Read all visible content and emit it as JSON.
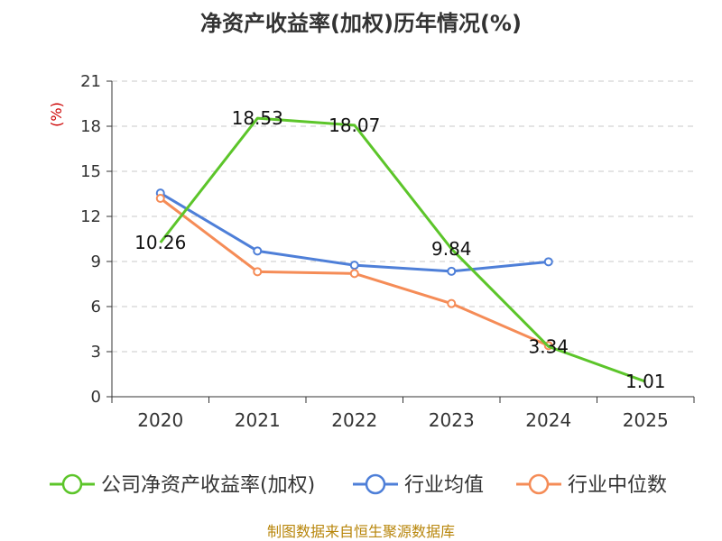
{
  "chart_data": {
    "type": "line",
    "title": "净资产收益率(加权)历年情况(%)",
    "ylabel": "(%)",
    "xlabel": "",
    "categories": [
      "2020",
      "2021",
      "2022",
      "2023",
      "2024",
      "2025"
    ],
    "ylim": [
      0,
      21
    ],
    "yticks": [
      0,
      3,
      6,
      9,
      12,
      15,
      18,
      21
    ],
    "grid": true,
    "legend_position": "bottom",
    "series": [
      {
        "name": "公司净资产收益率(加权)",
        "color": "#5cc52a",
        "values": [
          10.26,
          18.53,
          18.07,
          9.84,
          3.34,
          1.01
        ],
        "labels": [
          "10.26",
          "18.53",
          "18.07",
          "9.84",
          "3.34",
          "1.01"
        ],
        "show_markers": false
      },
      {
        "name": "行业均值",
        "color": "#4e7fd8",
        "values": [
          13.55,
          9.7,
          8.75,
          8.35,
          8.98,
          null
        ],
        "show_markers": true
      },
      {
        "name": "行业中位数",
        "color": "#f58c57",
        "values": [
          13.2,
          8.32,
          8.2,
          6.2,
          3.4,
          null
        ],
        "show_markers": true
      }
    ]
  },
  "source": "制图数据来自恒生聚源数据库"
}
